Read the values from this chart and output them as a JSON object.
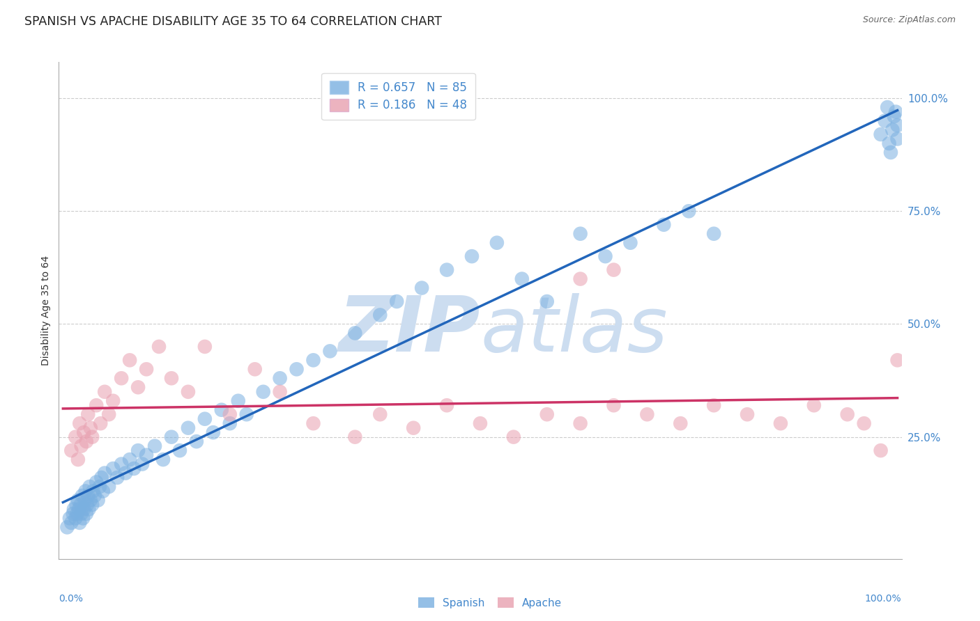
{
  "title": "SPANISH VS APACHE DISABILITY AGE 35 TO 64 CORRELATION CHART",
  "source": "Source: ZipAtlas.com",
  "ylabel": "Disability Age 35 to 64",
  "R_spanish": 0.657,
  "N_spanish": 85,
  "R_apache": 0.186,
  "N_apache": 48,
  "blue_color": "#7ab0e0",
  "pink_color": "#e8a0b0",
  "blue_line_color": "#2266bb",
  "pink_line_color": "#cc3366",
  "legend_text_color": "#4488cc",
  "watermark_color": "#ccddf0",
  "title_fontsize": 12.5,
  "gridline_color": "#cccccc",
  "ytick_labels_right": [
    "100.0%",
    "75.0%",
    "50.0%",
    "25.0%"
  ],
  "ytick_positions_right": [
    1.0,
    0.75,
    0.5,
    0.25
  ],
  "spanish_x": [
    0.005,
    0.008,
    0.01,
    0.012,
    0.013,
    0.015,
    0.016,
    0.017,
    0.018,
    0.019,
    0.02,
    0.021,
    0.022,
    0.023,
    0.024,
    0.025,
    0.026,
    0.027,
    0.028,
    0.029,
    0.03,
    0.031,
    0.032,
    0.033,
    0.035,
    0.036,
    0.038,
    0.04,
    0.042,
    0.044,
    0.046,
    0.048,
    0.05,
    0.055,
    0.06,
    0.065,
    0.07,
    0.075,
    0.08,
    0.085,
    0.09,
    0.095,
    0.1,
    0.11,
    0.12,
    0.13,
    0.14,
    0.15,
    0.16,
    0.17,
    0.18,
    0.19,
    0.2,
    0.21,
    0.22,
    0.24,
    0.26,
    0.28,
    0.3,
    0.32,
    0.35,
    0.38,
    0.4,
    0.43,
    0.46,
    0.49,
    0.52,
    0.55,
    0.58,
    0.62,
    0.65,
    0.68,
    0.72,
    0.75,
    0.78,
    0.98,
    0.985,
    0.988,
    0.99,
    0.992,
    0.994,
    0.996,
    0.998,
    1.0,
    1.0
  ],
  "spanish_y": [
    0.05,
    0.07,
    0.06,
    0.08,
    0.09,
    0.07,
    0.1,
    0.08,
    0.11,
    0.09,
    0.06,
    0.1,
    0.08,
    0.12,
    0.07,
    0.09,
    0.11,
    0.13,
    0.08,
    0.1,
    0.12,
    0.09,
    0.14,
    0.11,
    0.1,
    0.13,
    0.12,
    0.15,
    0.11,
    0.14,
    0.16,
    0.13,
    0.17,
    0.14,
    0.18,
    0.16,
    0.19,
    0.17,
    0.2,
    0.18,
    0.22,
    0.19,
    0.21,
    0.23,
    0.2,
    0.25,
    0.22,
    0.27,
    0.24,
    0.29,
    0.26,
    0.31,
    0.28,
    0.33,
    0.3,
    0.35,
    0.38,
    0.4,
    0.42,
    0.44,
    0.48,
    0.52,
    0.55,
    0.58,
    0.62,
    0.65,
    0.68,
    0.6,
    0.55,
    0.7,
    0.65,
    0.68,
    0.72,
    0.75,
    0.7,
    0.92,
    0.95,
    0.98,
    0.9,
    0.88,
    0.93,
    0.96,
    0.97,
    0.91,
    0.94
  ],
  "apache_x": [
    0.01,
    0.015,
    0.018,
    0.02,
    0.022,
    0.025,
    0.028,
    0.03,
    0.033,
    0.035,
    0.04,
    0.045,
    0.05,
    0.055,
    0.06,
    0.07,
    0.08,
    0.09,
    0.1,
    0.115,
    0.13,
    0.15,
    0.17,
    0.2,
    0.23,
    0.26,
    0.3,
    0.35,
    0.38,
    0.42,
    0.46,
    0.5,
    0.54,
    0.58,
    0.62,
    0.66,
    0.7,
    0.74,
    0.78,
    0.82,
    0.86,
    0.9,
    0.94,
    0.96,
    0.98,
    1.0,
    0.62,
    0.66
  ],
  "apache_y": [
    0.22,
    0.25,
    0.2,
    0.28,
    0.23,
    0.26,
    0.24,
    0.3,
    0.27,
    0.25,
    0.32,
    0.28,
    0.35,
    0.3,
    0.33,
    0.38,
    0.42,
    0.36,
    0.4,
    0.45,
    0.38,
    0.35,
    0.45,
    0.3,
    0.4,
    0.35,
    0.28,
    0.25,
    0.3,
    0.27,
    0.32,
    0.28,
    0.25,
    0.3,
    0.28,
    0.32,
    0.3,
    0.28,
    0.32,
    0.3,
    0.28,
    0.32,
    0.3,
    0.28,
    0.22,
    0.42,
    0.6,
    0.62
  ]
}
